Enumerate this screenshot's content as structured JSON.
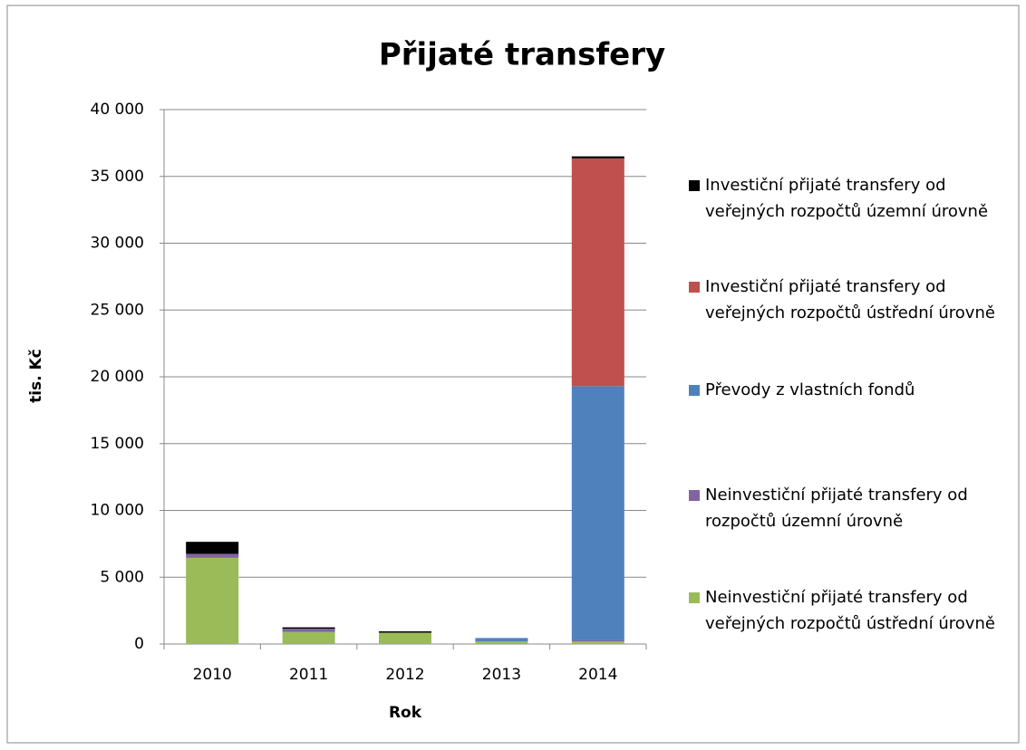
{
  "chart_data": {
    "type": "bar",
    "stacked": true,
    "title": "Přijaté transfery",
    "x_label": "Rok",
    "y_label": "tis. Kč",
    "categories": [
      "2010",
      "2011",
      "2012",
      "2013",
      "2014"
    ],
    "series": [
      {
        "name": "Neinvestiční přijaté transfery od veřejných rozpočtů ústřední úrovně",
        "color": "#9bbb59",
        "values": [
          6450,
          900,
          850,
          200,
          200
        ]
      },
      {
        "name": "Neinvestiční přijaté transfery od rozpočtů územní úrovně",
        "color": "#8064a2",
        "values": [
          300,
          250,
          0,
          0,
          100
        ]
      },
      {
        "name": "Převody z vlastních fondů",
        "color": "#4f81bd",
        "values": [
          0,
          0,
          0,
          250,
          19000
        ]
      },
      {
        "name": "Investiční přijaté transfery od veřejných rozpočtů ústřední úrovně",
        "color": "#c0504d",
        "values": [
          0,
          0,
          0,
          0,
          17050
        ]
      },
      {
        "name": "Investiční přijaté transfery od veřejných rozpočtů územní úrovně",
        "color": "#000000",
        "values": [
          900,
          100,
          100,
          0,
          150
        ]
      }
    ],
    "ylim": [
      0,
      40000
    ],
    "yticks": [
      {
        "value": 0,
        "label": "0"
      },
      {
        "value": 5000,
        "label": "5 000"
      },
      {
        "value": 10000,
        "label": "10 000"
      },
      {
        "value": 15000,
        "label": "15 000"
      },
      {
        "value": 20000,
        "label": "20 000"
      },
      {
        "value": 25000,
        "label": "25 000"
      },
      {
        "value": 30000,
        "label": "30 000"
      },
      {
        "value": 35000,
        "label": "35 000"
      },
      {
        "value": 40000,
        "label": "40 000"
      }
    ],
    "grid": true,
    "legend": "right"
  }
}
